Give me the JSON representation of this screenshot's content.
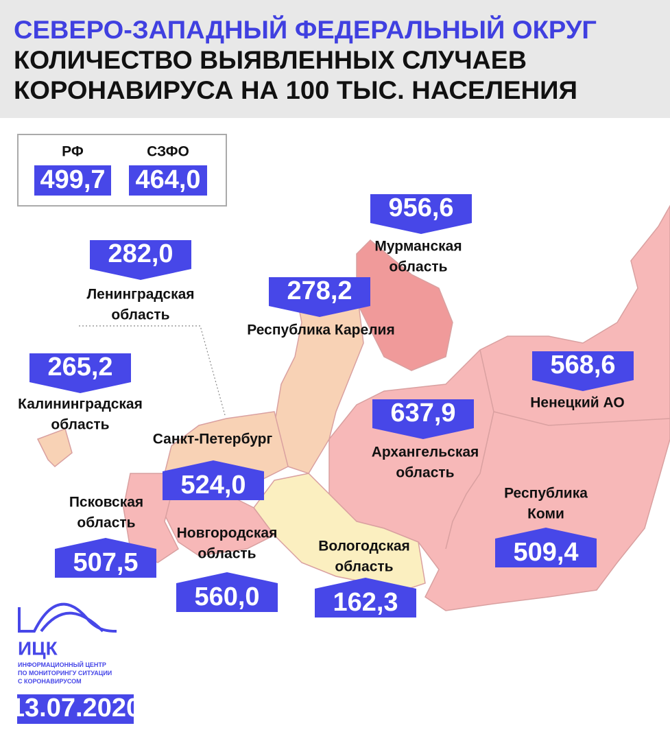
{
  "header": {
    "title": "СЕВЕРО-ЗАПАДНЫЙ ФЕДЕРАЛЬНЫЙ ОКРУГ",
    "subtitle_lines": [
      "КОЛИЧЕСТВО ВЫЯВЛЕННЫХ СЛУЧАЕВ",
      "КОРОНАВИРУСА НА 100 ТЫС. НАСЕЛЕНИЯ"
    ]
  },
  "summary": [
    {
      "label": "РФ",
      "value": "499,7"
    },
    {
      "label": "СЗФО",
      "value": "464,0"
    }
  ],
  "regions": [
    {
      "name_lines": [
        "Мурманская",
        "область"
      ],
      "value": "956,6"
    },
    {
      "name_lines": [
        "Ленинградская",
        "область"
      ],
      "value": "282,0"
    },
    {
      "name_lines": [
        "Республика Карелия"
      ],
      "value": "278,2"
    },
    {
      "name_lines": [
        "Калининградская",
        "область"
      ],
      "value": "265,2"
    },
    {
      "name_lines": [
        "Ненецкий АО"
      ],
      "value": "568,6"
    },
    {
      "name_lines": [
        "Санкт-Петербург"
      ],
      "value": "524,0"
    },
    {
      "name_lines": [
        "Архангельская",
        "область"
      ],
      "value": "637,9"
    },
    {
      "name_lines": [
        "Псковская",
        "область"
      ],
      "value": "507,5"
    },
    {
      "name_lines": [
        "Республика",
        "Коми"
      ],
      "value": "509,4"
    },
    {
      "name_lines": [
        "Новгородская",
        "область"
      ],
      "value": "560,0"
    },
    {
      "name_lines": [
        "Вологодская",
        "область"
      ],
      "value": "162,3"
    }
  ],
  "footer": {
    "logo": "ИЦК",
    "org_lines": [
      "ИНФОРМАЦИОННЫЙ ЦЕНТР",
      "ПО МОНИТОРИНГУ СИТУАЦИИ",
      "С КОРОНАВИРУСОМ"
    ],
    "date": "13.07.2020"
  }
}
